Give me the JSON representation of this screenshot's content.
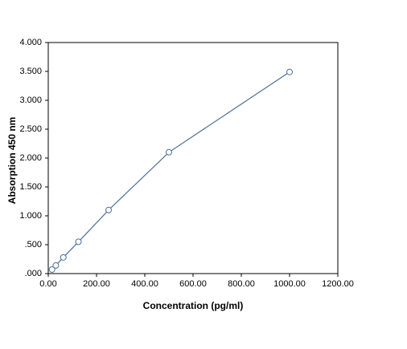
{
  "chart_data": {
    "type": "line",
    "x_label": "Concentration (pg/ml)",
    "y_label": "Absorption 450 nm",
    "series": [
      {
        "color": "#4a6f9c",
        "x": [
          15.6,
          31.25,
          62.5,
          125,
          250,
          500,
          1000
        ],
        "values": [
          0.07,
          0.14,
          0.28,
          0.55,
          1.1,
          2.1,
          3.49
        ]
      }
    ],
    "xlim": [
      0,
      1200
    ],
    "xticks": [
      {
        "value": 0,
        "label": "0.00"
      },
      {
        "value": 200,
        "label": "200.00"
      },
      {
        "value": 400,
        "label": "400.00"
      },
      {
        "value": 600,
        "label": "600.00"
      },
      {
        "value": 800,
        "label": "800.00"
      },
      {
        "value": 1000,
        "label": "1000.00"
      },
      {
        "value": 1200,
        "label": "1200.00"
      }
    ],
    "ylim": [
      0,
      4
    ],
    "yticks": [
      {
        "value": 0,
        "label": ".000"
      },
      {
        "value": 0.5,
        "label": ".500"
      },
      {
        "value": 1,
        "label": "1.000"
      },
      {
        "value": 1.5,
        "label": "1.500"
      },
      {
        "value": 2,
        "label": "2.000"
      },
      {
        "value": 2.5,
        "label": "2.500"
      },
      {
        "value": 3,
        "label": "3.000"
      },
      {
        "value": 3.5,
        "label": "3.500"
      },
      {
        "value": 4,
        "label": "4.000"
      }
    ],
    "grid": false
  }
}
